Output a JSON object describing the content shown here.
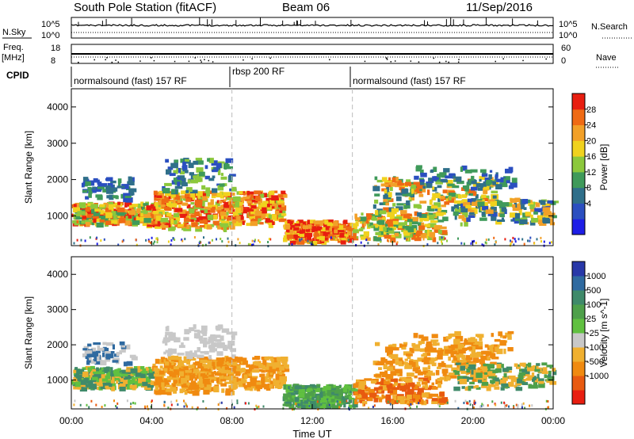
{
  "header": {
    "station": "South Pole Station (fitACF)",
    "beam": "Beam 06",
    "date": "11/Sep/2016"
  },
  "noise_panel": {
    "left_label": "N.Sky",
    "right_label": "N.Search",
    "left_ticks": [
      "10^5",
      "10^0"
    ],
    "right_ticks": [
      "10^5",
      "10^0"
    ]
  },
  "freq_panel": {
    "left_label_line1": "Freq.",
    "left_label_line2": "[MHz]",
    "right_label": "Nave",
    "left_ticks": [
      "18",
      "8"
    ],
    "right_ticks": [
      "60",
      "0"
    ]
  },
  "cpid": {
    "label": "CPID",
    "segments": [
      {
        "text": "normalsound (fast) 157 RF",
        "start_hour": 0
      },
      {
        "text": "rbsp 200 RF",
        "start_hour": 8
      },
      {
        "text": "normalsound (fast) 157 RF",
        "start_hour": 14
      }
    ]
  },
  "axes": {
    "ylabel": "Slant Range [km]",
    "y_ticks": [
      "1000",
      "2000",
      "3000",
      "4000"
    ],
    "x_ticks": [
      "00:00",
      "04:00",
      "08:00",
      "12:00",
      "16:00",
      "20:00",
      "00:00"
    ],
    "xlabel": "Time UT"
  },
  "colorbars": {
    "power": {
      "label": "Power [dB]",
      "ticks": [
        "4",
        "8",
        "12",
        "16",
        "20",
        "24",
        "28"
      ],
      "colors": [
        "#1e1ee6",
        "#2b4fc0",
        "#2f6f8a",
        "#3f9a5a",
        "#8cc83c",
        "#f0d21e",
        "#f2a028",
        "#ef6a14",
        "#e81e10"
      ]
    },
    "velocity": {
      "label": "Velocity [m s^-1]",
      "ticks": [
        "1000",
        "500",
        "100",
        "25",
        "-25",
        "-100",
        "-500",
        "-1000"
      ],
      "colors": [
        "#2838a8",
        "#2f6aa0",
        "#3f8a6a",
        "#4ea04a",
        "#60c040",
        "#c8c8c8",
        "#f0b030",
        "#f08a10",
        "#e85a10",
        "#e81e10"
      ]
    }
  },
  "chart_data": {
    "type": "heatmap",
    "x_range_hours": [
      0,
      24
    ],
    "y_range_km": [
      180,
      4500
    ],
    "dashed_markers_hours": [
      8,
      14
    ],
    "power_scale_db": [
      0,
      30
    ],
    "velocity_scale_ms": [
      -1000,
      1000
    ],
    "approx_features": [
      {
        "t": [
          0,
          8
        ],
        "range_km": [
          700,
          1600
        ],
        "power_db": "8-30",
        "velocity": "0 to -500"
      },
      {
        "t": [
          4,
          8
        ],
        "range_km": [
          1600,
          2600
        ],
        "power_db": "8-16",
        "velocity": "-25 to 25"
      },
      {
        "t": [
          10,
          14
        ],
        "range_km": [
          300,
          1000
        ],
        "power_db": "16-30",
        "velocity": "100 to 500"
      },
      {
        "t": [
          16,
          24
        ],
        "range_km": [
          500,
          2400
        ],
        "power_db": "8-24",
        "velocity": "-100 to -500"
      }
    ]
  }
}
